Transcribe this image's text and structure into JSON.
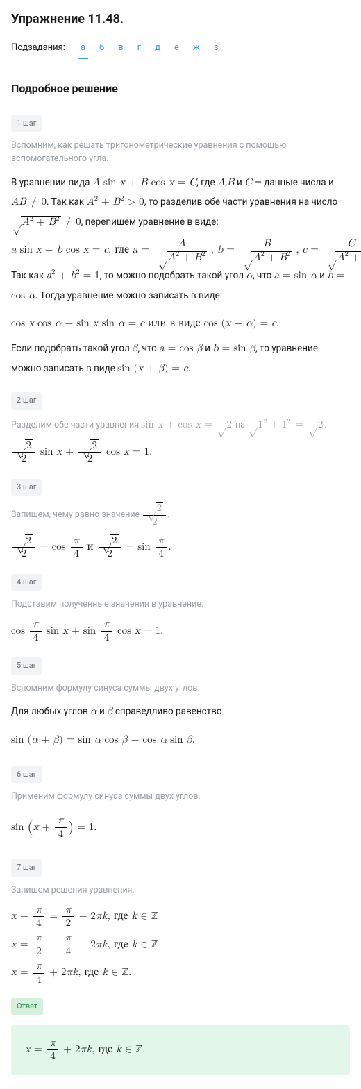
{
  "title": "Упражнение 11.48.",
  "subtasks_label": "Подзадания:",
  "subtasks": [
    "а",
    "б",
    "в",
    "г",
    "д",
    "е",
    "ж",
    "з"
  ],
  "active_subtask": 0,
  "section_title": "Подробное решение",
  "steps": [
    {
      "badge": "1 шаг",
      "muted": "Вспомним, как решать тригонометрические уравнения с помощью вспомогательного угла.",
      "html": "<p class='para'>В уравнении вида <span class='math-inline'><i>A</i> sin <i>x</i> + <i>B</i> cos <i>x</i> = <i>C</i></span>, где <span class='math-inline'><i>A</i></span>,<span class='math-inline'><i>B</i></span> и <span class='math-inline'><i>C</i></span> — данные числа и <span class='math-inline'><i>AB</i> ≠ 0</span>. Так как <span class='math-inline'><i>A</i><sup>2</sup> + <i>B</i><sup>2</sup> &gt; 0</span>, то разделив обе части уравнения на число <span class='math-inline'><span class='sqrt'><span><i>A</i><sup>2</sup> + <i>B</i><sup>2</sup></span></span> ≠ 0</span>, перепишем уравнение в виде:</p><div class='math-line'><i>a</i> sin <i>x</i> + <i>b</i> cos <i>x</i> = <i>c</i>, где <i>a</i> = <span class='frac'><span class='num'><i>A</i></span><span class='den'><span class='sqrt'><span><i>A</i><sup>2</sup> + <i>B</i><sup>2</sup></span></span></span></span>, <i>b</i> = <span class='frac'><span class='num'><i>B</i></span><span class='den'><span class='sqrt'><span><i>A</i><sup>2</sup> + <i>B</i><sup>2</sup></span></span></span></span>, <i>c</i> = <span class='frac'><span class='num'><i>C</i></span><span class='den'><span class='sqrt'><span><i>A</i><sup>2</sup> + <i>B</i><sup>2</sup></span></span></span></span>.</div><p class='para'>Так как <span class='math-inline'><i>a</i><sup>2</sup> + <i>b</i><sup>2</sup> = 1</span>, то можно подобрать такой угол <span class='math-inline'><i>α</i></span>, что <span class='math-inline'><i>a</i> = sin <i>α</i></span> и <span class='math-inline'><i>b</i> = cos <i>α</i></span>. Тогда уравнение можно записать в виде:</p><div class='math-line'>cos <i>x</i> cos <i>α</i> + sin <i>x</i> sin <i>α</i> = <i>c</i> или в виде cos (<i>x</i> − <i>α</i>) = <i>c</i>.</div><p class='para'>Если подобрать такой угол <span class='math-inline'><i>β</i></span>, что <span class='math-inline'><i>a</i> = cos <i>β</i></span> и <span class='math-inline'><i>b</i> = sin <i>β</i></span>, то уравнение можно записать в виде <span class='math-inline'>sin (<i>x</i> + <i>β</i>) = <i>c</i></span>.</p>"
    },
    {
      "badge": "2 шаг",
      "muted_html": "Разделим обе части уравнения <span class='math-inline'>sin <i>x</i> + cos <i>x</i> = <span class='sqrt'><span>2</span></span></span> на <span class='math-inline'><span class='sqrt'><span>1<sup>2</sup> + 1<sup>2</sup></span></span> = <span class='sqrt'><span>2</span></span></span>.",
      "html": "<div class='math-line'><span class='frac'><span class='num'><span class='sqrt'><span>2</span></span></span><span class='den'>2</span></span> sin <i>x</i> + <span class='frac'><span class='num'><span class='sqrt'><span>2</span></span></span><span class='den'>2</span></span> cos <i>x</i> = 1.</div>"
    },
    {
      "badge": "3 шаг",
      "muted_html": "Запишем, чему равно значение <span class='math-inline'><span class='frac'><span class='num'><span class='sqrt'><span>2</span></span></span><span class='den'>2</span></span></span>.",
      "html": "<div class='math-line'><span class='frac'><span class='num'><span class='sqrt'><span>2</span></span></span><span class='den'>2</span></span> = cos <span class='frac'><span class='num'><i>π</i></span><span class='den'>4</span></span> и <span class='frac'><span class='num'><span class='sqrt'><span>2</span></span></span><span class='den'>2</span></span> = sin <span class='frac'><span class='num'><i>π</i></span><span class='den'>4</span></span>.</div>"
    },
    {
      "badge": "4 шаг",
      "muted": "Подставим полученные значения в уравнение.",
      "html": "<div class='math-line'>cos <span class='frac'><span class='num'><i>π</i></span><span class='den'>4</span></span> sin <i>x</i> + sin <span class='frac'><span class='num'><i>π</i></span><span class='den'>4</span></span> cos <i>x</i> = 1.</div>"
    },
    {
      "badge": "5 шаг",
      "muted": "Вспомним формулу синуса суммы двух углов.",
      "html": "<p class='para'>Для любых углов <span class='math-inline'><i>α</i></span> и <span class='math-inline'><i>β</i></span> справедливо равенство</p><div class='math-line'>sin (<i>α</i> + <i>β</i>) = sin <i>α</i> cos <i>β</i> + cos <i>α</i> sin <i>β</i>.</div>"
    },
    {
      "badge": "6 шаг",
      "muted": "Применим формулу синуса суммы двух углов.",
      "html": "<div class='math-line'>sin <span style='font-size:1.4em;vertical-align:-0.1em;'>(</span><i>x</i> + <span class='frac'><span class='num'><i>π</i></span><span class='den'>4</span></span><span style='font-size:1.4em;vertical-align:-0.1em;'>)</span> = 1.</div>"
    },
    {
      "badge": "7 шаг",
      "muted": "Запишем решения уравнения.",
      "html": "<div class='math-line'><i>x</i> + <span class='frac'><span class='num'><i>π</i></span><span class='den'>4</span></span> = <span class='frac'><span class='num'><i>π</i></span><span class='den'>2</span></span> + 2<i>π</i><i>k</i>, где <i>k</i> ∈ ℤ</div><div class='math-line'><i>x</i> = <span class='frac'><span class='num'><i>π</i></span><span class='den'>2</span></span> − <span class='frac'><span class='num'><i>π</i></span><span class='den'>4</span></span> + 2<i>π</i><i>k</i>, где <i>k</i> ∈ ℤ</div><div class='math-line'><i>x</i> = <span class='frac'><span class='num'><i>π</i></span><span class='den'>4</span></span> + 2<i>π</i><i>k</i>, где <i>k</i> ∈ ℤ.</div>"
    }
  ],
  "answer": {
    "badge": "Ответ",
    "html": "<div class='math-line'><i>x</i> = <span class='frac'><span class='num'><i>π</i></span><span class='den'>4</span></span> + 2<i>π</i><i>k</i>, где <i>k</i> ∈ ℤ.</div>"
  },
  "colors": {
    "text": "#1a1a1a",
    "muted": "#9aa0a6",
    "tab_accent": "#3ba3cf",
    "step_badge_bg": "#f1f3f4",
    "step_badge_fg": "#6b6f73",
    "answer_badge_bg": "#d5f1de",
    "answer_badge_fg": "#2b8a4b",
    "answer_box_bg": "#e3f6ea",
    "divider": "#eef0f2"
  }
}
